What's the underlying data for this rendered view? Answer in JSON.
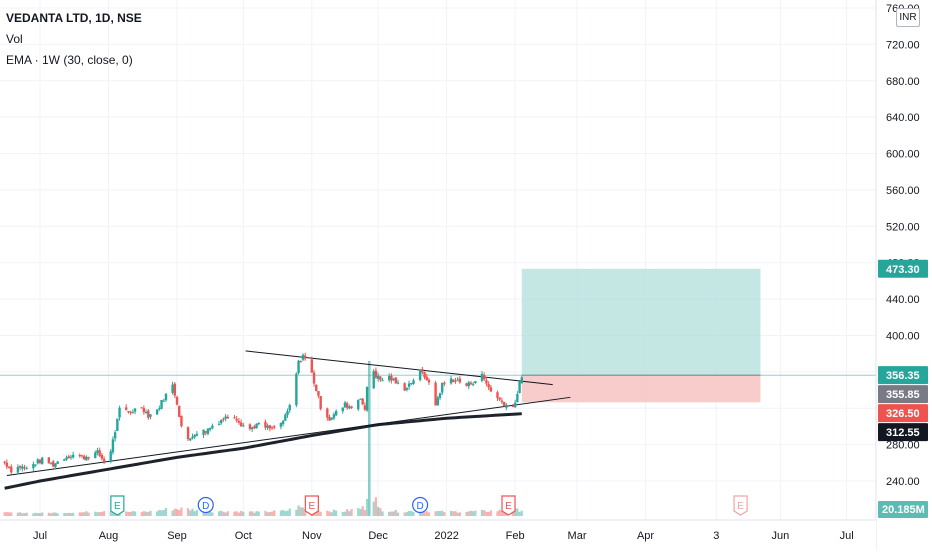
{
  "legend": {
    "symbol": "VEDANTA LTD, 1D, NSE",
    "volume": "Vol",
    "ema": "EMA · 1W (30, close, 0)"
  },
  "currency_label": "INR",
  "colors": {
    "up": "#26a69a",
    "down": "#ef5350",
    "ema": "#1e222d",
    "target_zone": "#b2dfdb",
    "stop_zone": "#f8c3c3",
    "grid": "#f0f3fa",
    "trendline": "#131722"
  },
  "chart_data": {
    "type": "candlestick",
    "y_axis": {
      "range": [
        219,
        762
      ],
      "ticks": [
        "760.00",
        "720.00",
        "680.00",
        "640.00",
        "600.00",
        "560.00",
        "520.00",
        "480.00",
        "440.00",
        "400.00",
        "360.00",
        "320.00",
        "280.00",
        "240.00"
      ],
      "position": "right"
    },
    "x_axis": {
      "ticks": [
        {
          "label": "Jul",
          "date": "2021-07-01"
        },
        {
          "label": "Aug",
          "date": "2021-08-01"
        },
        {
          "label": "Sep",
          "date": "2021-09-01"
        },
        {
          "label": "Oct",
          "date": "2021-10-01"
        },
        {
          "label": "Nov",
          "date": "2021-11-01"
        },
        {
          "label": "Dec",
          "date": "2021-12-01"
        },
        {
          "label": "2022",
          "date": "2022-01-01"
        },
        {
          "label": "Feb",
          "date": "2022-02-01"
        },
        {
          "label": "Mar",
          "date": "2022-03-01"
        },
        {
          "label": "Apr",
          "date": "2022-04-01"
        },
        {
          "label": "3",
          "date": "2022-05-03"
        },
        {
          "label": "Jun",
          "date": "2022-06-01"
        },
        {
          "label": "Jul",
          "date": "2022-07-01"
        }
      ]
    },
    "price_path": [
      [
        "2021-06-15",
        261
      ],
      [
        "2021-06-18",
        252
      ],
      [
        "2021-06-22",
        256
      ],
      [
        "2021-06-25",
        253
      ],
      [
        "2021-06-29",
        260
      ],
      [
        "2021-07-02",
        263
      ],
      [
        "2021-07-07",
        258
      ],
      [
        "2021-07-12",
        266
      ],
      [
        "2021-07-16",
        269
      ],
      [
        "2021-07-21",
        266
      ],
      [
        "2021-07-27",
        271
      ],
      [
        "2021-07-30",
        262
      ],
      [
        "2021-08-02",
        274
      ],
      [
        "2021-08-04",
        295
      ],
      [
        "2021-08-06",
        318
      ],
      [
        "2021-08-11",
        316
      ],
      [
        "2021-08-16",
        322
      ],
      [
        "2021-08-19",
        312
      ],
      [
        "2021-08-23",
        318
      ],
      [
        "2021-08-26",
        331
      ],
      [
        "2021-08-30",
        345
      ],
      [
        "2021-09-01",
        326
      ],
      [
        "2021-09-03",
        300
      ],
      [
        "2021-09-06",
        284
      ],
      [
        "2021-09-09",
        293
      ],
      [
        "2021-09-14",
        295
      ],
      [
        "2021-09-17",
        301
      ],
      [
        "2021-09-22",
        309
      ],
      [
        "2021-09-27",
        312
      ],
      [
        "2021-09-30",
        303
      ],
      [
        "2021-10-04",
        297
      ],
      [
        "2021-10-07",
        302
      ],
      [
        "2021-10-11",
        299
      ],
      [
        "2021-10-14",
        297
      ],
      [
        "2021-10-18",
        303
      ],
      [
        "2021-10-20",
        310
      ],
      [
        "2021-10-22",
        322
      ],
      [
        "2021-10-26",
        370
      ],
      [
        "2021-10-28",
        379
      ],
      [
        "2021-11-01",
        358
      ],
      [
        "2021-11-03",
        340
      ],
      [
        "2021-11-05",
        322
      ],
      [
        "2021-11-09",
        308
      ],
      [
        "2021-11-12",
        315
      ],
      [
        "2021-11-16",
        324
      ],
      [
        "2021-11-19",
        321
      ],
      [
        "2021-11-23",
        333
      ],
      [
        "2021-11-25",
        316
      ],
      [
        "2021-11-27",
        372
      ],
      [
        "2021-11-30",
        356
      ],
      [
        "2021-12-02",
        351
      ],
      [
        "2021-12-06",
        354
      ],
      [
        "2021-12-09",
        348
      ],
      [
        "2021-12-13",
        342
      ],
      [
        "2021-12-16",
        349
      ],
      [
        "2021-12-20",
        360
      ],
      [
        "2021-12-23",
        353
      ],
      [
        "2021-12-27",
        324
      ],
      [
        "2021-12-30",
        346
      ],
      [
        "2022-01-03",
        352
      ],
      [
        "2022-01-06",
        350
      ],
      [
        "2022-01-10",
        345
      ],
      [
        "2022-01-13",
        349
      ],
      [
        "2022-01-17",
        356
      ],
      [
        "2022-01-20",
        343
      ],
      [
        "2022-01-24",
        331
      ],
      [
        "2022-01-27",
        325
      ],
      [
        "2022-01-31",
        321
      ],
      [
        "2022-02-02",
        336
      ],
      [
        "2022-02-04",
        356
      ]
    ],
    "volume_path": [
      [
        "2021-06-15",
        0.15
      ],
      [
        "2021-07-01",
        0.12
      ],
      [
        "2021-07-20",
        0.18
      ],
      [
        "2021-08-03",
        0.45
      ],
      [
        "2021-08-09",
        0.22
      ],
      [
        "2021-08-20",
        0.28
      ],
      [
        "2021-08-30",
        0.6
      ],
      [
        "2021-09-06",
        0.55
      ],
      [
        "2021-09-15",
        0.32
      ],
      [
        "2021-09-25",
        0.3
      ],
      [
        "2021-10-08",
        0.22
      ],
      [
        "2021-10-20",
        0.35
      ],
      [
        "2021-10-26",
        0.75
      ],
      [
        "2021-11-03",
        0.42
      ],
      [
        "2021-11-15",
        0.3
      ],
      [
        "2021-11-25",
        0.7
      ],
      [
        "2021-11-27",
        4.3
      ],
      [
        "2021-12-01",
        0.6
      ],
      [
        "2021-12-10",
        0.28
      ],
      [
        "2021-12-20",
        0.35
      ],
      [
        "2022-01-01",
        0.25
      ],
      [
        "2022-01-15",
        0.3
      ],
      [
        "2022-01-25",
        0.38
      ],
      [
        "2022-02-04",
        0.45
      ]
    ],
    "ema_path": [
      [
        "2021-06-15",
        232
      ],
      [
        "2021-07-01",
        240
      ],
      [
        "2021-08-01",
        253
      ],
      [
        "2021-09-01",
        266
      ],
      [
        "2021-10-01",
        276
      ],
      [
        "2021-11-01",
        290
      ],
      [
        "2021-12-01",
        302
      ],
      [
        "2022-01-01",
        309
      ],
      [
        "2022-02-04",
        314
      ]
    ],
    "trendlines": [
      {
        "points": [
          [
            "2021-10-02",
            383
          ],
          [
            "2022-02-18",
            346
          ]
        ]
      },
      {
        "points": [
          [
            "2021-06-16",
            246
          ],
          [
            "2022-02-26",
            332
          ]
        ]
      }
    ],
    "position_tool": {
      "start": "2022-02-04",
      "end": "2022-05-23",
      "entry": 356.35,
      "target": 473.3,
      "stop": 326.5
    },
    "price_labels": [
      {
        "value": "473.30",
        "y": 473.3,
        "kind": "target"
      },
      {
        "value": "356.35",
        "y": 356.35,
        "kind": "last"
      },
      {
        "value": "355.85",
        "y": 355.85,
        "kind": "prev",
        "row": 1
      },
      {
        "value": "326.50",
        "y": 326.5,
        "kind": "stop",
        "row": 2
      },
      {
        "value": "312.55",
        "y": 312.55,
        "kind": "ema",
        "row": 3
      }
    ],
    "volume_label": "20.185M",
    "events": [
      {
        "date": "2021-08-05",
        "letter": "E",
        "type": "earnings",
        "past": true
      },
      {
        "date": "2021-09-14",
        "letter": "D",
        "type": "dividend",
        "past": true
      },
      {
        "date": "2021-11-01",
        "letter": "E",
        "type": "earnings",
        "past": true
      },
      {
        "date": "2021-12-20",
        "letter": "D",
        "type": "dividend",
        "past": true
      },
      {
        "date": "2022-01-29",
        "letter": "E",
        "type": "earnings",
        "past": true
      },
      {
        "date": "2022-05-14",
        "letter": "E",
        "type": "earnings",
        "past": false
      }
    ]
  }
}
